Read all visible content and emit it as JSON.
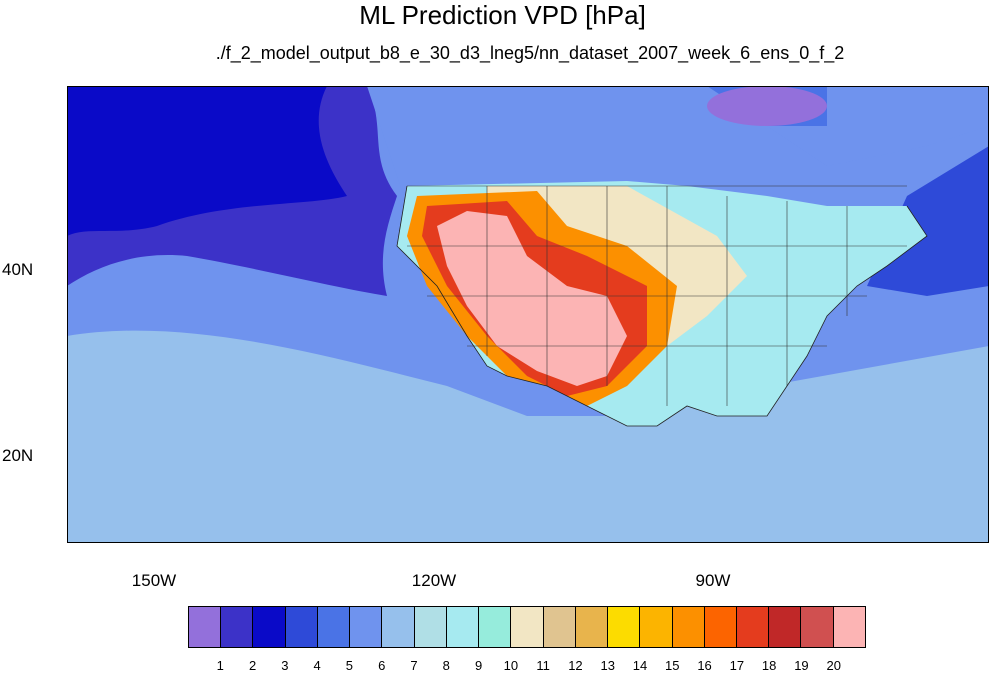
{
  "title": "ML Prediction VPD [hPa]",
  "subtitle": "./f_2_model_output_b8_e_30_d3_lneg5/nn_dataset_2007_week_6_ens_0_f_2",
  "lat_labels": [
    "40N",
    "20N"
  ],
  "lon_labels": [
    "150W",
    "120W",
    "90W"
  ],
  "colorbar": {
    "tick_labels": [
      "1",
      "2",
      "3",
      "4",
      "5",
      "6",
      "7",
      "8",
      "9",
      "10",
      "11",
      "12",
      "13",
      "14",
      "15",
      "16",
      "17",
      "18",
      "19",
      "20"
    ],
    "colors": [
      "#9370db",
      "#3c32c8",
      "#0a0ac8",
      "#2e4ad8",
      "#4a73e6",
      "#6f93ee",
      "#96c0ec",
      "#b0dfe6",
      "#a6eaf0",
      "#96ecdc",
      "#f2e6c4",
      "#e0c490",
      "#e8b44c",
      "#fcdc00",
      "#fcb400",
      "#fc9000",
      "#fc6400",
      "#e43c1e",
      "#c02828",
      "#d05050",
      "#fcb4b4"
    ]
  },
  "map": {
    "region": "North America and eastern Pacific",
    "lon_range": [
      -160,
      -62
    ],
    "lat_range": [
      10,
      58
    ]
  }
}
